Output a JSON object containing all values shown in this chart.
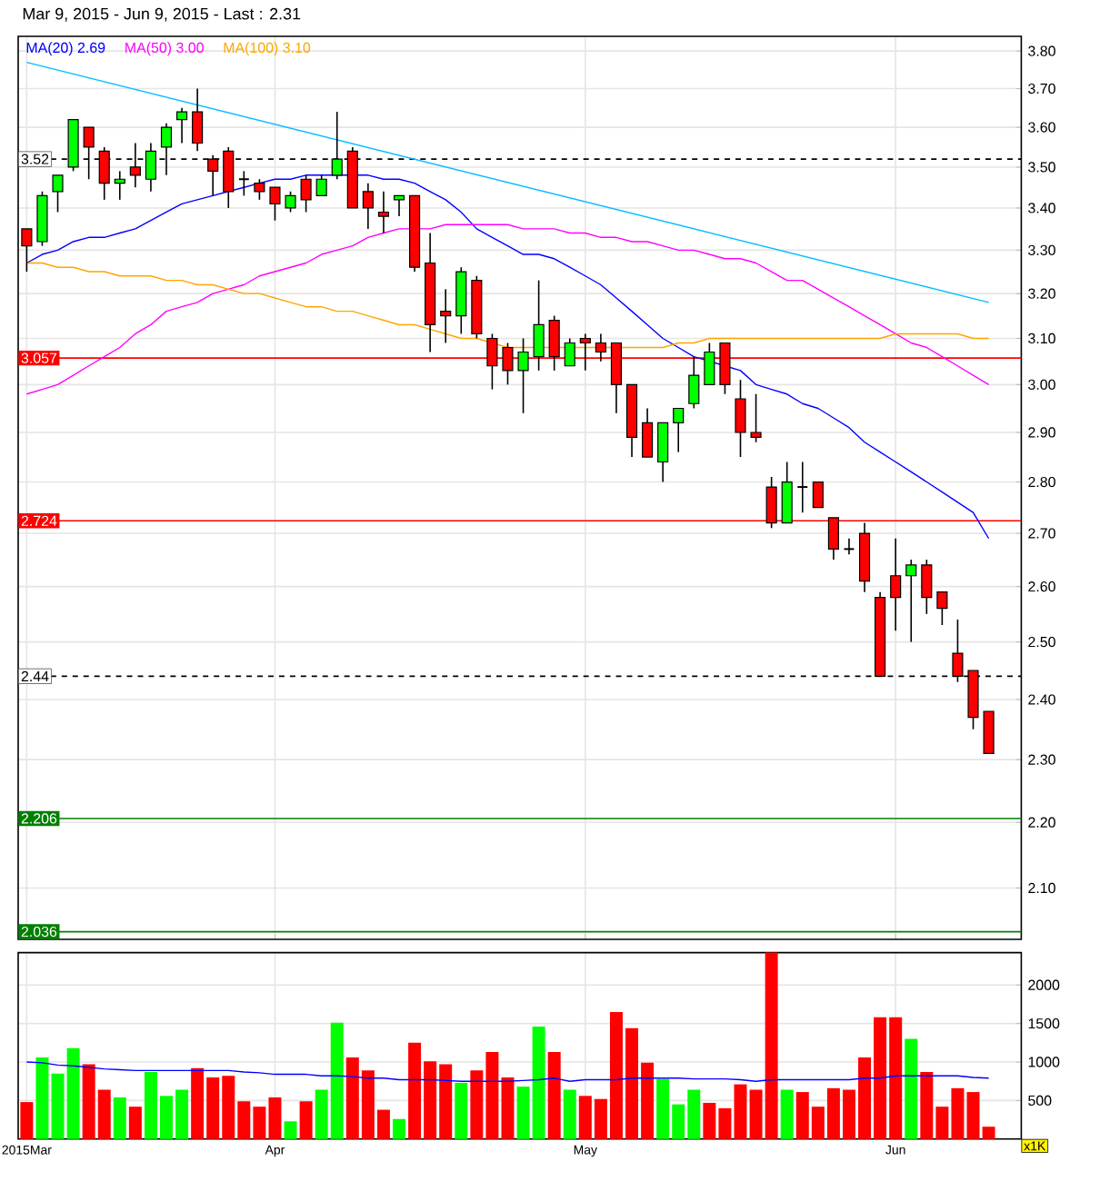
{
  "chart_data": [
    {
      "type": "candlestick",
      "title": "Mar 9, 2015 - Jun 9, 2015 - Last : 2.31",
      "log": true,
      "grid": true,
      "tick_labels": "y",
      "categories": [
        null,
        null,
        null,
        null,
        null,
        null,
        null,
        null,
        null,
        null,
        null,
        null,
        null,
        null,
        null,
        null,
        null,
        null,
        null,
        null,
        null,
        null,
        null,
        null,
        null,
        null,
        null,
        null,
        null,
        null,
        null,
        null,
        null,
        null,
        null,
        null,
        null,
        null,
        null,
        null,
        null,
        null,
        null,
        null,
        null,
        null,
        null,
        null,
        null,
        null,
        null,
        null,
        null,
        null,
        null,
        null,
        null,
        null,
        null,
        null,
        null,
        null,
        null
      ],
      "ohlc": [
        [
          3.35,
          3.35,
          3.25,
          3.31
        ],
        [
          3.32,
          3.44,
          3.31,
          3.43
        ],
        [
          3.44,
          3.48,
          3.39,
          3.48
        ],
        [
          3.5,
          3.62,
          3.49,
          3.62
        ],
        [
          3.6,
          3.6,
          3.47,
          3.55
        ],
        [
          3.54,
          3.55,
          3.42,
          3.46
        ],
        [
          3.46,
          3.49,
          3.42,
          3.47
        ],
        [
          3.5,
          3.56,
          3.45,
          3.48
        ],
        [
          3.47,
          3.56,
          3.44,
          3.54
        ],
        [
          3.55,
          3.61,
          3.48,
          3.6
        ],
        [
          3.62,
          3.65,
          3.56,
          3.64
        ],
        [
          3.64,
          3.7,
          3.54,
          3.56
        ],
        [
          3.52,
          3.53,
          3.43,
          3.49
        ],
        [
          3.54,
          3.55,
          3.4,
          3.44
        ],
        [
          3.47,
          3.49,
          3.43,
          3.47
        ],
        [
          3.46,
          3.47,
          3.42,
          3.44
        ],
        [
          3.45,
          3.45,
          3.37,
          3.41
        ],
        [
          3.4,
          3.44,
          3.39,
          3.43
        ],
        [
          3.47,
          3.48,
          3.39,
          3.42
        ],
        [
          3.43,
          3.48,
          3.43,
          3.47
        ],
        [
          3.48,
          3.64,
          3.47,
          3.52
        ],
        [
          3.54,
          3.55,
          3.4,
          3.4
        ],
        [
          3.44,
          3.46,
          3.35,
          3.4
        ],
        [
          3.39,
          3.44,
          3.34,
          3.38
        ],
        [
          3.42,
          3.43,
          3.38,
          3.43
        ],
        [
          3.43,
          3.43,
          3.25,
          3.26
        ],
        [
          3.27,
          3.34,
          3.07,
          3.13
        ],
        [
          3.16,
          3.21,
          3.09,
          3.15
        ],
        [
          3.15,
          3.26,
          3.11,
          3.25
        ],
        [
          3.23,
          3.24,
          3.1,
          3.11
        ],
        [
          3.1,
          3.11,
          2.99,
          3.04
        ],
        [
          3.08,
          3.09,
          3.0,
          3.03
        ],
        [
          3.03,
          3.1,
          2.94,
          3.07
        ],
        [
          3.06,
          3.23,
          3.03,
          3.13
        ],
        [
          3.14,
          3.15,
          3.03,
          3.06
        ],
        [
          3.04,
          3.1,
          3.04,
          3.09
        ],
        [
          3.1,
          3.11,
          3.03,
          3.09
        ],
        [
          3.09,
          3.11,
          3.05,
          3.07
        ],
        [
          3.09,
          3.09,
          2.94,
          3.0
        ],
        [
          3.0,
          3.0,
          2.85,
          2.89
        ],
        [
          2.92,
          2.95,
          2.85,
          2.85
        ],
        [
          2.84,
          2.92,
          2.8,
          2.92
        ],
        [
          2.92,
          2.95,
          2.86,
          2.95
        ],
        [
          2.96,
          3.06,
          2.95,
          3.02
        ],
        [
          3.0,
          3.09,
          3.0,
          3.07
        ],
        [
          3.09,
          3.09,
          2.98,
          3.0
        ],
        [
          2.97,
          3.01,
          2.85,
          2.9
        ],
        [
          2.9,
          2.98,
          2.88,
          2.89
        ],
        [
          2.79,
          2.81,
          2.71,
          2.72
        ],
        [
          2.72,
          2.84,
          2.72,
          2.8
        ],
        [
          2.79,
          2.84,
          2.74,
          2.79
        ],
        [
          2.8,
          2.8,
          2.75,
          2.75
        ],
        [
          2.73,
          2.73,
          2.65,
          2.67
        ],
        [
          2.67,
          2.69,
          2.66,
          2.67
        ],
        [
          2.7,
          2.72,
          2.59,
          2.61
        ],
        [
          2.58,
          2.59,
          2.44,
          2.44
        ],
        [
          2.62,
          2.69,
          2.52,
          2.58
        ],
        [
          2.62,
          2.65,
          2.5,
          2.64
        ],
        [
          2.64,
          2.65,
          2.55,
          2.58
        ],
        [
          2.59,
          2.59,
          2.53,
          2.56
        ],
        [
          2.48,
          2.54,
          2.43,
          2.44
        ],
        [
          2.45,
          2.45,
          2.35,
          2.37
        ],
        [
          2.38,
          2.38,
          2.31,
          2.31
        ]
      ],
      "colors": [
        "#ff0000",
        "#00ff00",
        "#00ff00",
        "#00ff00",
        "#ff0000",
        "#ff0000",
        "#00ff00",
        "#ff0000",
        "#00ff00",
        "#00ff00",
        "#00ff00",
        "#ff0000",
        "#ff0000",
        "#ff0000",
        "#000000",
        "#ff0000",
        "#ff0000",
        "#00ff00",
        "#ff0000",
        "#00ff00",
        "#00ff00",
        "#ff0000",
        "#ff0000",
        "#ff0000",
        "#00ff00",
        "#ff0000",
        "#ff0000",
        "#ff0000",
        "#00ff00",
        "#ff0000",
        "#ff0000",
        "#ff0000",
        "#00ff00",
        "#00ff00",
        "#ff0000",
        "#00ff00",
        "#ff0000",
        "#ff0000",
        "#ff0000",
        "#ff0000",
        "#ff0000",
        "#00ff00",
        "#00ff00",
        "#00ff00",
        "#00ff00",
        "#ff0000",
        "#ff0000",
        "#ff0000",
        "#ff0000",
        "#00ff00",
        "#000000",
        "#ff0000",
        "#ff0000",
        "#000000",
        "#ff0000",
        "#ff0000",
        "#ff0000",
        "#00ff00",
        "#ff0000",
        "#ff0000",
        "#ff0000",
        "#ff0000",
        "#ff0000"
      ],
      "series": [
        {
          "type": "line",
          "name": "MA(20) 2.69",
          "color": "#0000ff",
          "values": [
            3.27,
            3.29,
            3.3,
            3.32,
            3.33,
            3.33,
            3.34,
            3.35,
            3.37,
            3.39,
            3.41,
            3.42,
            3.43,
            3.44,
            3.45,
            3.46,
            3.47,
            3.47,
            3.48,
            3.48,
            3.48,
            3.48,
            3.48,
            3.47,
            3.47,
            3.46,
            3.44,
            3.42,
            3.39,
            3.35,
            3.33,
            3.31,
            3.29,
            3.29,
            3.28,
            3.26,
            3.24,
            3.22,
            3.19,
            3.16,
            3.13,
            3.1,
            3.08,
            3.06,
            3.05,
            3.04,
            3.03,
            3.0,
            2.99,
            2.98,
            2.96,
            2.95,
            2.93,
            2.91,
            2.88,
            2.86,
            2.84,
            2.82,
            2.8,
            2.78,
            2.76,
            2.74,
            2.69
          ]
        },
        {
          "type": "line",
          "name": "MA(50) 3.00",
          "color": "#ff00ff",
          "values": [
            2.98,
            2.99,
            3.0,
            3.02,
            3.04,
            3.06,
            3.08,
            3.11,
            3.13,
            3.16,
            3.17,
            3.18,
            3.2,
            3.21,
            3.22,
            3.24,
            3.25,
            3.26,
            3.27,
            3.29,
            3.3,
            3.31,
            3.33,
            3.34,
            3.35,
            3.35,
            3.35,
            3.36,
            3.36,
            3.36,
            3.36,
            3.36,
            3.35,
            3.35,
            3.35,
            3.34,
            3.34,
            3.33,
            3.33,
            3.32,
            3.32,
            3.31,
            3.3,
            3.3,
            3.29,
            3.28,
            3.28,
            3.27,
            3.25,
            3.23,
            3.23,
            3.21,
            3.19,
            3.17,
            3.15,
            3.13,
            3.11,
            3.09,
            3.08,
            3.06,
            3.04,
            3.02,
            3.0
          ]
        },
        {
          "type": "line",
          "name": "MA(100) 3.10",
          "color": "#ffa500",
          "values": [
            3.27,
            3.27,
            3.26,
            3.26,
            3.25,
            3.25,
            3.24,
            3.24,
            3.24,
            3.23,
            3.23,
            3.22,
            3.22,
            3.21,
            3.2,
            3.2,
            3.19,
            3.18,
            3.17,
            3.17,
            3.16,
            3.16,
            3.15,
            3.14,
            3.13,
            3.13,
            3.12,
            3.11,
            3.1,
            3.1,
            3.09,
            3.08,
            3.08,
            3.08,
            3.08,
            3.08,
            3.08,
            3.08,
            3.08,
            3.08,
            3.08,
            3.08,
            3.09,
            3.09,
            3.1,
            3.1,
            3.1,
            3.1,
            3.1,
            3.1,
            3.1,
            3.1,
            3.1,
            3.1,
            3.1,
            3.1,
            3.11,
            3.11,
            3.11,
            3.11,
            3.11,
            3.1,
            3.1
          ]
        },
        {
          "type": "line",
          "color": "#00bfff",
          "values": [
            3.77,
            null,
            null,
            null,
            null,
            null,
            null,
            null,
            null,
            null,
            null,
            null,
            null,
            null,
            null,
            null,
            null,
            null,
            null,
            null,
            null,
            null,
            null,
            null,
            null,
            null,
            null,
            null,
            null,
            null,
            null,
            null,
            null,
            null,
            null,
            null,
            null,
            null,
            null,
            null,
            null,
            null,
            null,
            null,
            null,
            null,
            null,
            null,
            null,
            null,
            null,
            null,
            null,
            null,
            null,
            null,
            null,
            null,
            null,
            null,
            null,
            null,
            3.18
          ]
        }
      ],
      "ref_lines": [
        {
          "axis": "y",
          "value": 3.52,
          "label": "3.52",
          "color": "#000000",
          "line_style": "dashed"
        },
        {
          "axis": "y",
          "value": 3.057,
          "label": "3.057",
          "color": "#ff0000",
          "line_style": "solid"
        },
        {
          "axis": "y",
          "value": 2.724,
          "label": "2.724",
          "color": "#ff0000",
          "line_style": "solid"
        },
        {
          "axis": "y",
          "value": 2.44,
          "label": "2.44",
          "color": "#000000",
          "line_style": "dashed"
        },
        {
          "axis": "y",
          "value": 2.206,
          "label": "2.206",
          "color": "#008000",
          "line_style": "solid"
        },
        {
          "axis": "y",
          "value": 2.036,
          "label": "2.036",
          "color": "#008000",
          "line_style": "solid"
        }
      ],
      "ylim": [
        2.025,
        3.84
      ],
      "yticks": [
        {
          "value": 2.1,
          "label": "2.10"
        },
        {
          "value": 2.2,
          "label": "2.20"
        },
        {
          "value": 2.3,
          "label": "2.30"
        },
        {
          "value": 2.4,
          "label": "2.40"
        },
        {
          "value": 2.5,
          "label": "2.50"
        },
        {
          "value": 2.6,
          "label": "2.60"
        },
        {
          "value": 2.7,
          "label": "2.70"
        },
        {
          "value": 2.8,
          "label": "2.80"
        },
        {
          "value": 2.9,
          "label": "2.90"
        },
        {
          "value": 3.0,
          "label": "3.00"
        },
        {
          "value": 3.1,
          "label": "3.10"
        },
        {
          "value": 3.2,
          "label": "3.20"
        },
        {
          "value": 3.3,
          "label": "3.30"
        },
        {
          "value": 3.4,
          "label": "3.40"
        },
        {
          "value": 3.5,
          "label": "3.50"
        },
        {
          "value": 3.6,
          "label": "3.60"
        },
        {
          "value": 3.7,
          "label": "3.70"
        },
        {
          "value": 3.8,
          "label": "3.80"
        }
      ]
    },
    {
      "type": "bar",
      "grid": true,
      "categories": [
        "2015Mar",
        null,
        null,
        null,
        null,
        null,
        null,
        null,
        null,
        null,
        null,
        null,
        null,
        null,
        null,
        null,
        "Apr",
        null,
        null,
        null,
        null,
        null,
        null,
        null,
        null,
        null,
        null,
        null,
        null,
        null,
        null,
        null,
        null,
        null,
        null,
        null,
        "May",
        null,
        null,
        null,
        null,
        null,
        null,
        null,
        null,
        null,
        null,
        null,
        null,
        null,
        null,
        null,
        null,
        null,
        null,
        null,
        "Jun",
        null,
        null,
        null,
        null,
        null,
        null
      ],
      "series": [
        {
          "type": "bar",
          "values": [
            480,
            1060,
            850,
            1180,
            970,
            640,
            540,
            420,
            870,
            560,
            640,
            920,
            800,
            820,
            490,
            420,
            540,
            230,
            490,
            640,
            1510,
            1060,
            890,
            380,
            260,
            1250,
            1010,
            970,
            730,
            890,
            1130,
            800,
            680,
            1460,
            1130,
            640,
            560,
            520,
            1650,
            1440,
            990,
            780,
            450,
            640,
            470,
            400,
            710,
            640,
            2420,
            640,
            610,
            420,
            660,
            640,
            1060,
            1580,
            1580,
            1300,
            870,
            420,
            660,
            610,
            160
          ],
          "colors": [
            "#ff0000",
            "#00ff00",
            "#00ff00",
            "#00ff00",
            "#ff0000",
            "#ff0000",
            "#00ff00",
            "#ff0000",
            "#00ff00",
            "#00ff00",
            "#00ff00",
            "#ff0000",
            "#ff0000",
            "#ff0000",
            "#ff0000",
            "#ff0000",
            "#ff0000",
            "#00ff00",
            "#ff0000",
            "#00ff00",
            "#00ff00",
            "#ff0000",
            "#ff0000",
            "#ff0000",
            "#00ff00",
            "#ff0000",
            "#ff0000",
            "#ff0000",
            "#00ff00",
            "#ff0000",
            "#ff0000",
            "#ff0000",
            "#00ff00",
            "#00ff00",
            "#ff0000",
            "#00ff00",
            "#ff0000",
            "#ff0000",
            "#ff0000",
            "#ff0000",
            "#ff0000",
            "#00ff00",
            "#00ff00",
            "#00ff00",
            "#ff0000",
            "#ff0000",
            "#ff0000",
            "#ff0000",
            "#ff0000",
            "#00ff00",
            "#ff0000",
            "#ff0000",
            "#ff0000",
            "#ff0000",
            "#ff0000",
            "#ff0000",
            "#ff0000",
            "#00ff00",
            "#ff0000",
            "#ff0000",
            "#ff0000",
            "#ff0000",
            "#ff0000"
          ]
        },
        {
          "type": "line",
          "color": "#0000ff",
          "values": [
            1000,
            990,
            960,
            950,
            930,
            910,
            900,
            890,
            890,
            890,
            890,
            890,
            890,
            890,
            870,
            860,
            840,
            840,
            840,
            820,
            820,
            810,
            790,
            790,
            770,
            770,
            770,
            760,
            750,
            750,
            750,
            750,
            760,
            770,
            790,
            750,
            770,
            770,
            770,
            790,
            790,
            790,
            790,
            780,
            780,
            780,
            770,
            750,
            770,
            770,
            770,
            770,
            770,
            770,
            790,
            790,
            820,
            820,
            820,
            820,
            820,
            800,
            790
          ]
        }
      ],
      "annotations": [
        "x1K"
      ],
      "ylim": [
        0,
        2420
      ],
      "yticks": [
        500,
        1000,
        1500,
        2000
      ]
    }
  ]
}
